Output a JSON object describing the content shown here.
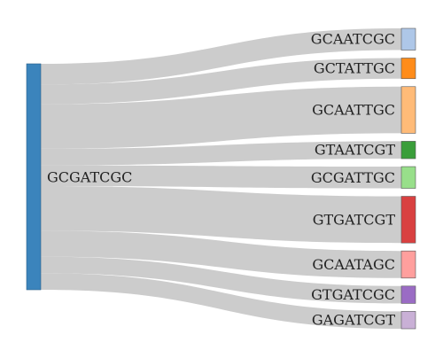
{
  "source": {
    "label": "GCGATCGC",
    "color": "#3b84bc"
  },
  "targets": [
    {
      "label": "GCAATCGC",
      "value": 1.0,
      "color": "#aec7e8"
    },
    {
      "label": "GCTATTGC",
      "value": 0.95,
      "color": "#ff8c1a"
    },
    {
      "label": "GCAATTGC",
      "value": 2.15,
      "color": "#ffbb78"
    },
    {
      "label": "GTAATCGT",
      "value": 0.8,
      "color": "#3a9e3a"
    },
    {
      "label": "GCGATTGC",
      "value": 1.0,
      "color": "#98df8a"
    },
    {
      "label": "GTGATCGT",
      "value": 2.15,
      "color": "#d94040"
    },
    {
      "label": "GCAATAGC",
      "value": 1.25,
      "color": "#ff9f9d"
    },
    {
      "label": "GTGATCGC",
      "value": 0.8,
      "color": "#9a6cc4"
    },
    {
      "label": "GAGATCGT",
      "value": 0.8,
      "color": "#c9b0d6"
    }
  ],
  "link_color": "#cccccc"
}
